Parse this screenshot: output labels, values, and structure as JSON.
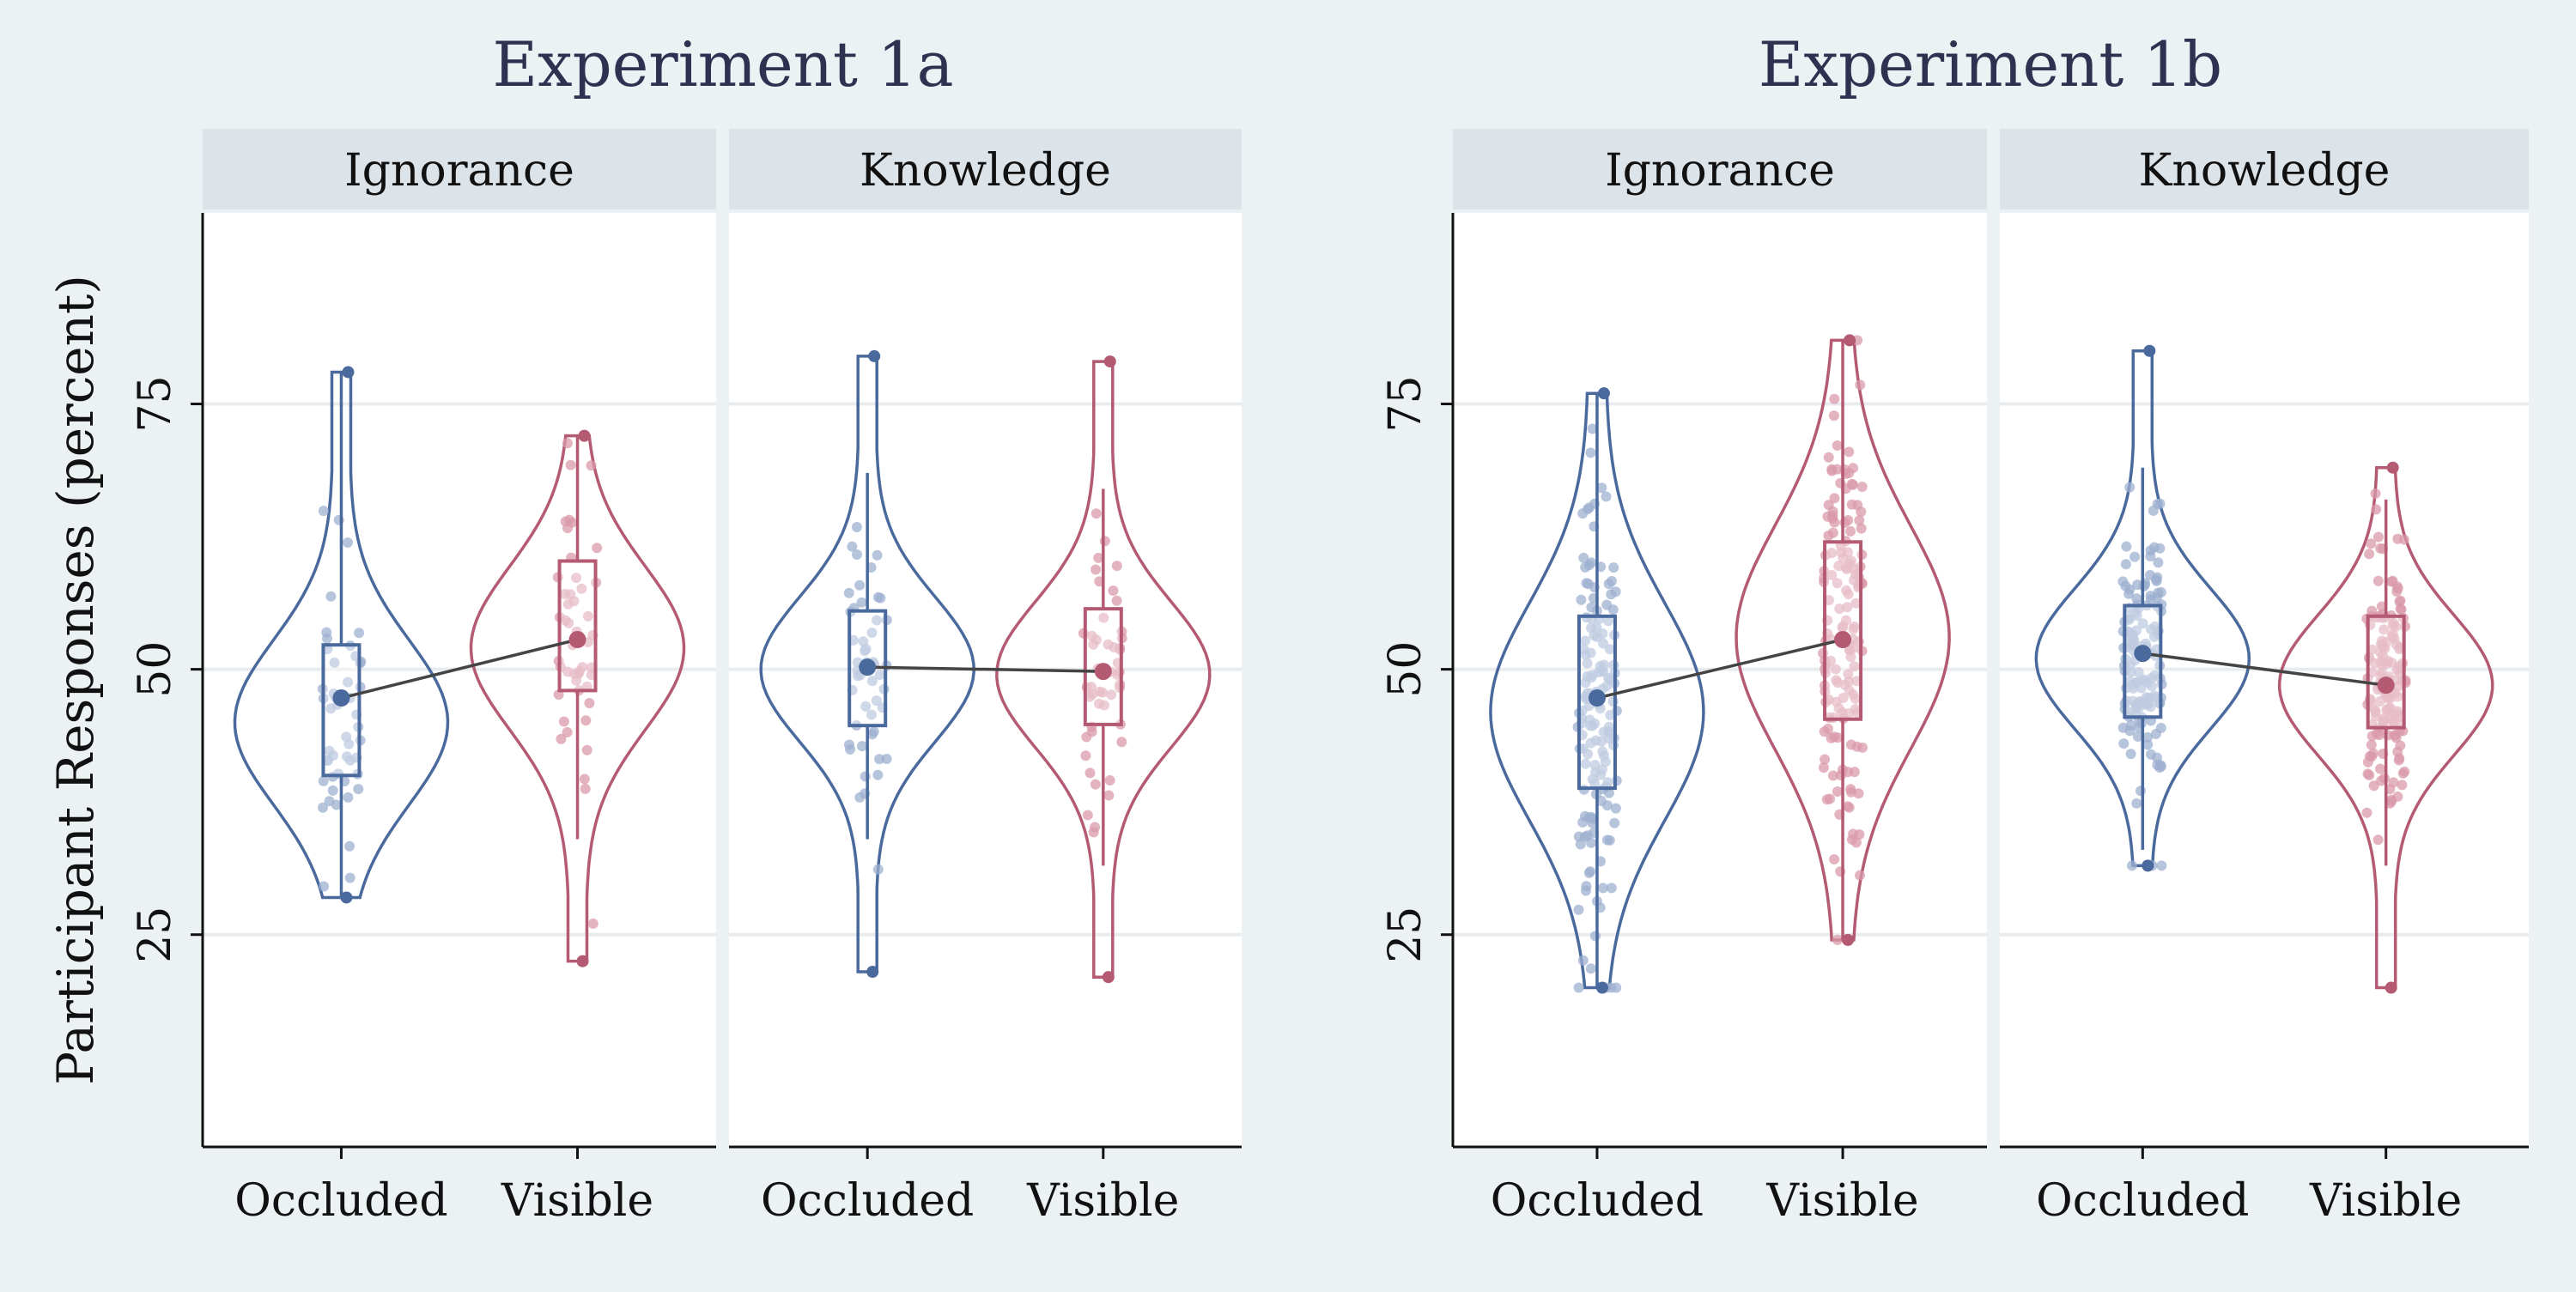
{
  "chart_data": {
    "type": "violin",
    "ylabel": "Participant Responses (percent)",
    "ylim": [
      5,
      93
    ],
    "yticks": [
      25,
      50,
      75
    ],
    "grid": true,
    "group_colors": {
      "Occluded": "#4a6a9e",
      "Visible": "#b45a72"
    },
    "experiments": [
      {
        "title": "Experiment 1a",
        "facets": [
          {
            "label": "Ignorance",
            "groups": [
              {
                "name": "Occluded",
                "mean": 47.3,
                "q1": 40,
                "median": 45,
                "q3": 52.3,
                "whisker_low": 28.5,
                "whisker_high": 78,
                "min": 28.5,
                "max": 78
              },
              {
                "name": "Visible",
                "mean": 52.8,
                "q1": 48,
                "median": 52,
                "q3": 60.2,
                "whisker_low": 34,
                "whisker_high": 72,
                "min": 22.5,
                "max": 72
              }
            ]
          },
          {
            "label": "Knowledge",
            "groups": [
              {
                "name": "Occluded",
                "mean": 50.2,
                "q1": 44.7,
                "median": 50,
                "q3": 55.5,
                "whisker_low": 34,
                "whisker_high": 68.5,
                "min": 21.5,
                "max": 79.5
              },
              {
                "name": "Visible",
                "mean": 49.8,
                "q1": 44.8,
                "median": 49.5,
                "q3": 55.7,
                "whisker_low": 31.5,
                "whisker_high": 67,
                "min": 21,
                "max": 79
              }
            ]
          }
        ]
      },
      {
        "title": "Experiment 1b",
        "facets": [
          {
            "label": "Ignorance",
            "groups": [
              {
                "name": "Occluded",
                "mean": 47.3,
                "q1": 38.8,
                "median": 46,
                "q3": 55,
                "whisker_low": 20,
                "whisker_high": 76,
                "min": 20,
                "max": 76
              },
              {
                "name": "Visible",
                "mean": 52.8,
                "q1": 45.3,
                "median": 53,
                "q3": 62,
                "whisker_low": 24.5,
                "whisker_high": 81,
                "min": 24.5,
                "max": 81
              }
            ]
          },
          {
            "label": "Knowledge",
            "groups": [
              {
                "name": "Occluded",
                "mean": 51.5,
                "q1": 45.5,
                "median": 51,
                "q3": 56,
                "whisker_low": 33,
                "whisker_high": 69,
                "min": 31.5,
                "max": 80
              },
              {
                "name": "Visible",
                "mean": 48.5,
                "q1": 44.5,
                "median": 48.5,
                "q3": 55,
                "whisker_low": 31.5,
                "whisker_high": 66,
                "min": 20,
                "max": 69
              }
            ]
          }
        ]
      }
    ]
  }
}
